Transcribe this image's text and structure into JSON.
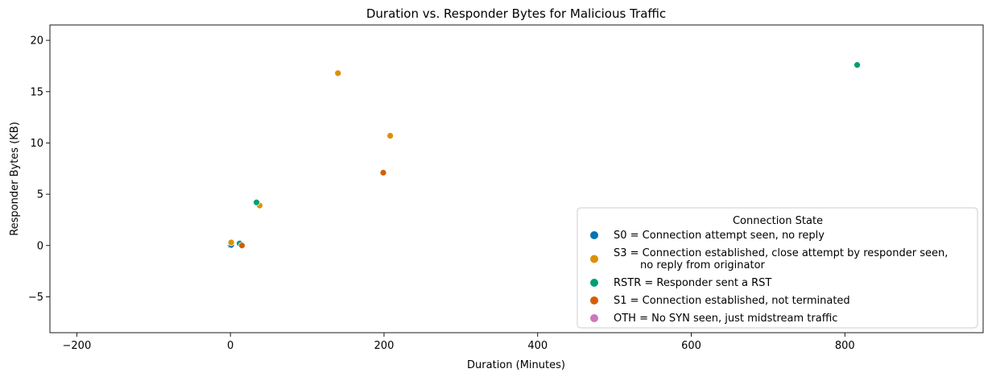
{
  "chart_data": {
    "type": "scatter",
    "title": "Duration vs. Responder Bytes for Malicious Traffic",
    "xlabel": "Duration (Minutes)",
    "ylabel": "Responder Bytes (KB)",
    "xlim": [
      -235,
      980
    ],
    "ylim": [
      -8.5,
      21.5
    ],
    "xticks": [
      -200,
      0,
      200,
      400,
      600,
      800
    ],
    "yticks": [
      -5,
      0,
      5,
      10,
      15,
      20
    ],
    "xtick_labels": [
      "−200",
      "0",
      "200",
      "400",
      "600",
      "800"
    ],
    "ytick_labels": [
      "−5",
      "0",
      "5",
      "10",
      "15",
      "20"
    ],
    "grid": false,
    "legend": {
      "title": "Connection State",
      "placement": "lower right"
    },
    "series": [
      {
        "name": "S0 = Connection attempt seen, no reply",
        "name_lines": [
          "S0 = Connection attempt seen, no reply"
        ],
        "color": "#0173b2",
        "points": [
          [
            0,
            0.0
          ],
          [
            1,
            0.05
          ]
        ]
      },
      {
        "name": "S3 = Connection established, close attempt by responder seen, no reply from originator",
        "name_lines": [
          "S3 = Connection established, close attempt by responder seen,",
          "        no reply from originator"
        ],
        "color": "#de8f05",
        "points": [
          [
            1,
            0.3
          ],
          [
            38,
            3.9
          ],
          [
            140,
            16.8
          ],
          [
            208,
            10.7
          ]
        ]
      },
      {
        "name": "RSTR = Responder sent a RST",
        "name_lines": [
          "RSTR = Responder sent a RST"
        ],
        "color": "#029e73",
        "points": [
          [
            12,
            0.2
          ],
          [
            34,
            4.2
          ],
          [
            816,
            17.6
          ]
        ]
      },
      {
        "name": "S1 = Connection established, not terminated",
        "name_lines": [
          "S1 = Connection established, not terminated"
        ],
        "color": "#d55e00",
        "points": [
          [
            15,
            0.0
          ],
          [
            199,
            7.1
          ]
        ]
      },
      {
        "name": "OTH = No SYN seen, just midstream traffic",
        "name_lines": [
          "OTH = No SYN seen, just midstream traffic"
        ],
        "color": "#cc78bc",
        "points": []
      }
    ]
  }
}
